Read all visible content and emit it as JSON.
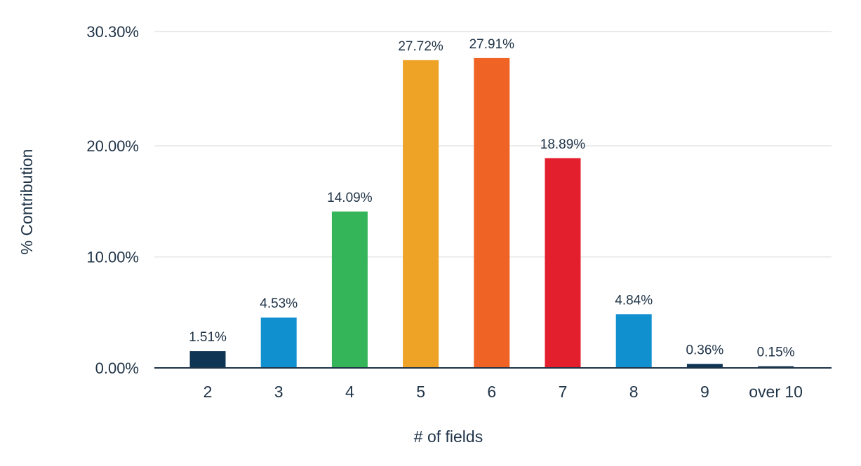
{
  "chart_data": {
    "type": "bar",
    "title": "",
    "xlabel": "# of fields",
    "ylabel": "% Contribution",
    "categories": [
      "2",
      "3",
      "4",
      "5",
      "6",
      "7",
      "8",
      "9",
      "over 10"
    ],
    "values": [
      1.51,
      4.53,
      14.09,
      27.72,
      27.91,
      18.89,
      4.84,
      0.36,
      0.15
    ],
    "value_labels": [
      "1.51%",
      "4.53%",
      "14.09%",
      "27.72%",
      "27.91%",
      "18.89%",
      "4.84%",
      "0.36%",
      "0.15%"
    ],
    "colors": [
      "#0e3553",
      "#1190d0",
      "#35b55a",
      "#eea326",
      "#ef6424",
      "#e31e2d",
      "#1190d0",
      "#0e3553",
      "#0e3553"
    ],
    "ylim": [
      0,
      30.3
    ],
    "yticks": [
      0,
      10,
      20,
      30.3
    ],
    "ytick_labels": [
      "0.00%",
      "10.00%",
      "20.00%",
      "30.30%"
    ],
    "grid": true,
    "legend": "none"
  }
}
